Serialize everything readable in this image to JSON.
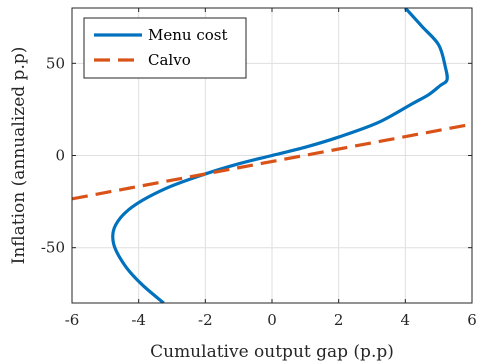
{
  "chart_data": {
    "type": "line",
    "xlabel": "Cumulative output gap (p.p)",
    "ylabel": "Inflation (annualized p.p)",
    "xlim": [
      -6,
      6
    ],
    "ylim": [
      -80,
      80
    ],
    "xticks": [
      -6,
      -4,
      -2,
      0,
      2,
      4,
      6
    ],
    "yticks": [
      -50,
      0,
      50
    ],
    "xtick_labels": [
      "-6",
      "-4",
      "-2",
      "0",
      "2",
      "4",
      "6"
    ],
    "ytick_labels": [
      "-50",
      "0",
      "50"
    ],
    "grid": true,
    "legend_position": "top-left",
    "series": [
      {
        "name": "Menu cost",
        "color": "#0072BD",
        "style": "solid",
        "x": [
          -3.25,
          -3.9,
          -4.4,
          -4.75,
          -4.7,
          -4.2,
          -3.2,
          -2.0,
          -1.0,
          0.0,
          1.0,
          2.0,
          3.2,
          4.2,
          4.7,
          5.05,
          5.25,
          5.2,
          5.0,
          4.5,
          4.0
        ],
        "y": [
          -80,
          -70,
          -60,
          -48,
          -38,
          -28,
          -18,
          -10,
          -4.5,
          0,
          4.5,
          10,
          18,
          28,
          33,
          38,
          41,
          48,
          60,
          70,
          80
        ]
      },
      {
        "name": "Calvo",
        "color": "#D95319",
        "style": "dashed",
        "x": [
          -6,
          6
        ],
        "y": [
          -23.5,
          17
        ]
      }
    ]
  }
}
